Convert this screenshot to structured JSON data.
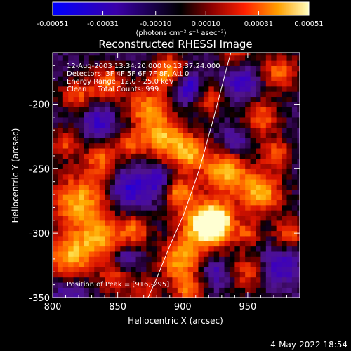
{
  "chart_data": {
    "type": "heatmap",
    "title": "Reconstructed RHESSI Image",
    "xlabel": "Heliocentric X (arcsec)",
    "ylabel": "Heliocentric Y (arcsec)",
    "xlim": [
      800,
      990
    ],
    "ylim": [
      -350,
      -160
    ],
    "x_ticks": [
      800,
      850,
      900,
      950
    ],
    "y_ticks": [
      -200,
      -250,
      -300,
      -350
    ],
    "colorbar": {
      "min": -0.00051,
      "max": 0.00051,
      "tick_values": [
        -0.00051,
        -0.00031,
        -0.0001,
        0.0001,
        0.00031,
        0.00051
      ],
      "tick_labels": [
        "-0.00051",
        "-0.00031",
        "-0.00010",
        "0.00010",
        "0.00031",
        "0.00051"
      ],
      "unit_label": "(photons cm⁻² s⁻¹ asec⁻²)"
    },
    "annotations": [
      "12-Aug-2003 13:34:20.000 to 13:37:24.000",
      "Detectors: 3F 4F 5F 6F 7F 8F, Att 0",
      "Energy Range: 12.0 - 25.0 keV",
      "Clean     Total Counts: 999."
    ],
    "peak_label": "Position of Peak = [916,-295]",
    "peak": [
      916,
      -295
    ],
    "limb": [
      [
        872,
        -353
      ],
      [
        880,
        -335
      ],
      [
        890,
        -310
      ],
      [
        901,
        -285
      ],
      [
        913,
        -250
      ],
      [
        924,
        -210
      ],
      [
        933,
        -175
      ],
      [
        937,
        -160
      ]
    ],
    "blobs": [
      [
        916,
        -295,
        14,
        1.0
      ],
      [
        926,
        -290,
        9,
        0.85
      ],
      [
        932,
        -252,
        12,
        0.85
      ],
      [
        905,
        -238,
        10,
        0.75
      ],
      [
        885,
        -225,
        12,
        0.8
      ],
      [
        872,
        -202,
        11,
        0.7
      ],
      [
        888,
        -175,
        10,
        0.75
      ],
      [
        918,
        -195,
        9,
        0.6
      ],
      [
        960,
        -268,
        12,
        0.85
      ],
      [
        972,
        -238,
        8,
        0.6
      ],
      [
        960,
        -210,
        10,
        0.6
      ],
      [
        975,
        -175,
        10,
        0.65
      ],
      [
        820,
        -275,
        15,
        0.85
      ],
      [
        812,
        -318,
        12,
        0.8
      ],
      [
        836,
        -305,
        12,
        0.75
      ],
      [
        838,
        -242,
        10,
        0.6
      ],
      [
        842,
        -183,
        9,
        0.7
      ],
      [
        818,
        -193,
        9,
        0.55
      ],
      [
        848,
        -335,
        9,
        0.5
      ],
      [
        897,
        -322,
        11,
        0.75
      ],
      [
        863,
        -297,
        9,
        0.6
      ],
      [
        898,
        -268,
        8,
        0.7
      ],
      [
        950,
        -330,
        10,
        0.5
      ],
      [
        982,
        -300,
        9,
        0.55
      ],
      [
        940,
        -160,
        8,
        0.5
      ],
      [
        860,
        -230,
        7,
        0.55
      ],
      [
        810,
        -230,
        8,
        0.5
      ],
      [
        905,
        -345,
        9,
        0.6
      ],
      [
        870,
        -345,
        8,
        0.45
      ],
      [
        950,
        -300,
        7,
        0.5
      ]
    ],
    "dips": [
      [
        905,
        -188,
        8,
        -0.75
      ],
      [
        860,
        -265,
        10,
        -0.55
      ],
      [
        945,
        -182,
        9,
        -0.5
      ],
      [
        835,
        -215,
        9,
        -0.45
      ],
      [
        880,
        -258,
        7,
        -0.45
      ],
      [
        940,
        -228,
        7,
        -0.4
      ],
      [
        975,
        -325,
        10,
        -0.45
      ],
      [
        925,
        -330,
        8,
        -0.4
      ],
      [
        855,
        -320,
        7,
        -0.4
      ],
      [
        812,
        -345,
        7,
        -0.35
      ]
    ]
  },
  "footer": {
    "date": "4-May-2022 18:54"
  }
}
